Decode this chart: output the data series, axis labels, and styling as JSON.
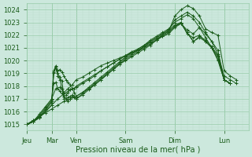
{
  "xlabel": "Pression niveau de la mer( hPa )",
  "bg_color": "#cce8dd",
  "grid_color_major": "#99ccaa",
  "grid_color_minor": "#bbddcc",
  "line_color": "#1a5c1a",
  "ylim": [
    1014.5,
    1024.5
  ],
  "day_labels": [
    "Jeu",
    "Mar",
    "Ven",
    "Sam",
    "Dim",
    "Lun"
  ],
  "day_positions": [
    0,
    24,
    48,
    96,
    144,
    192
  ],
  "yticks": [
    1015,
    1016,
    1017,
    1018,
    1019,
    1020,
    1021,
    1022,
    1023,
    1024
  ],
  "total_hours": 216,
  "lines": [
    [
      0,
      1015.0,
      6,
      1015.3,
      12,
      1015.6,
      18,
      1015.9,
      24,
      1016.2,
      30,
      1016.5,
      36,
      1016.8,
      42,
      1017.0,
      48,
      1017.2,
      54,
      1017.5,
      60,
      1017.8,
      66,
      1018.1,
      72,
      1018.5,
      78,
      1018.9,
      84,
      1019.3,
      90,
      1019.7,
      96,
      1020.0,
      102,
      1020.3,
      108,
      1020.6,
      114,
      1020.9,
      120,
      1021.2,
      126,
      1021.6,
      132,
      1022.0,
      138,
      1022.3,
      144,
      1023.5,
      150,
      1024.0,
      156,
      1024.3,
      162,
      1024.1,
      168,
      1023.5,
      174,
      1022.5,
      180,
      1022.2,
      186,
      1022.0,
      192,
      1019.2,
      198,
      1018.8,
      204,
      1018.5
    ],
    [
      0,
      1015.0,
      6,
      1015.3,
      12,
      1015.6,
      18,
      1016.0,
      24,
      1016.5,
      30,
      1017.0,
      36,
      1017.4,
      42,
      1017.7,
      48,
      1017.9,
      54,
      1018.2,
      60,
      1018.5,
      66,
      1018.8,
      72,
      1019.2,
      78,
      1019.5,
      84,
      1019.8,
      90,
      1020.1,
      96,
      1020.4,
      102,
      1020.7,
      108,
      1020.9,
      114,
      1021.2,
      120,
      1021.5,
      126,
      1021.8,
      132,
      1022.1,
      138,
      1022.4,
      144,
      1023.2,
      150,
      1023.5,
      156,
      1023.8,
      162,
      1023.5,
      168,
      1023.0,
      174,
      1022.2,
      180,
      1021.5,
      186,
      1020.5,
      192,
      1018.8,
      198,
      1018.5,
      204,
      1018.2
    ],
    [
      0,
      1015.0,
      6,
      1015.2,
      12,
      1015.5,
      18,
      1016.0,
      24,
      1016.5,
      26,
      1019.0,
      28,
      1019.5,
      30,
      1019.2,
      32,
      1019.3,
      34,
      1019.1,
      36,
      1018.8,
      38,
      1018.5,
      40,
      1018.3,
      42,
      1018.1,
      44,
      1017.8,
      46,
      1017.5,
      48,
      1017.2,
      54,
      1017.5,
      60,
      1017.9,
      66,
      1018.3,
      72,
      1018.7,
      78,
      1019.1,
      84,
      1019.5,
      90,
      1019.9,
      96,
      1020.3,
      102,
      1020.6,
      108,
      1020.9,
      114,
      1021.2,
      120,
      1021.6,
      126,
      1021.9,
      132,
      1022.2,
      138,
      1022.5,
      144,
      1023.0,
      150,
      1023.3,
      156,
      1023.6,
      162,
      1023.3,
      168,
      1022.6,
      174,
      1021.8,
      180,
      1021.0,
      186,
      1020.0,
      192,
      1018.5,
      198,
      1018.2
    ],
    [
      0,
      1015.0,
      6,
      1015.2,
      12,
      1015.5,
      18,
      1016.1,
      24,
      1016.7,
      26,
      1019.2,
      28,
      1019.6,
      30,
      1019.0,
      32,
      1018.7,
      34,
      1018.4,
      36,
      1017.2,
      38,
      1017.0,
      40,
      1016.8,
      42,
      1017.0,
      44,
      1017.2,
      46,
      1017.1,
      48,
      1017.0,
      54,
      1017.3,
      60,
      1017.7,
      66,
      1018.1,
      72,
      1018.5,
      78,
      1018.9,
      84,
      1019.3,
      90,
      1019.7,
      96,
      1020.1,
      102,
      1020.4,
      108,
      1020.7,
      114,
      1021.0,
      120,
      1021.3,
      126,
      1021.6,
      132,
      1021.9,
      138,
      1022.1,
      144,
      1022.6,
      150,
      1022.9,
      156,
      1022.4,
      162,
      1022.1,
      168,
      1022.6,
      174,
      1022.1,
      180,
      1021.5,
      186,
      1020.8,
      192,
      1018.5,
      198,
      1018.2
    ],
    [
      0,
      1015.0,
      6,
      1015.2,
      12,
      1015.6,
      18,
      1016.2,
      24,
      1016.8,
      26,
      1019.1,
      28,
      1019.4,
      30,
      1018.8,
      32,
      1018.5,
      34,
      1017.8,
      36,
      1017.0,
      38,
      1017.0,
      40,
      1017.1,
      42,
      1017.2,
      44,
      1017.3,
      46,
      1017.2,
      48,
      1017.0,
      54,
      1017.4,
      60,
      1017.8,
      66,
      1018.2,
      72,
      1018.6,
      78,
      1019.0,
      84,
      1019.4,
      90,
      1019.8,
      96,
      1020.2,
      102,
      1020.5,
      108,
      1020.8,
      114,
      1021.1,
      120,
      1021.5,
      126,
      1021.8,
      132,
      1022.1,
      138,
      1022.4,
      144,
      1022.8,
      150,
      1023.0,
      156,
      1022.1,
      162,
      1021.8,
      168,
      1022.0,
      174,
      1021.5,
      180,
      1021.0,
      186,
      1020.1,
      192,
      1018.5,
      198,
      1018.2
    ],
    [
      0,
      1015.0,
      6,
      1015.2,
      12,
      1015.7,
      18,
      1016.3,
      24,
      1016.9,
      26,
      1018.2,
      28,
      1018.3,
      30,
      1017.8,
      32,
      1017.6,
      34,
      1017.4,
      36,
      1017.2,
      38,
      1017.3,
      40,
      1017.5,
      42,
      1017.7,
      44,
      1017.8,
      46,
      1017.8,
      48,
      1018.0,
      54,
      1018.3,
      60,
      1018.6,
      66,
      1018.9,
      72,
      1019.2,
      78,
      1019.5,
      84,
      1019.8,
      90,
      1020.1,
      96,
      1020.4,
      102,
      1020.6,
      108,
      1020.8,
      114,
      1021.0,
      120,
      1021.3,
      126,
      1021.6,
      132,
      1021.9,
      138,
      1022.2,
      144,
      1022.7,
      150,
      1023.0,
      156,
      1022.2,
      162,
      1021.5,
      168,
      1021.8,
      174,
      1021.5,
      180,
      1021.0,
      186,
      1020.3,
      192,
      1018.5,
      198,
      1018.2
    ],
    [
      0,
      1015.0,
      6,
      1015.2,
      12,
      1015.8,
      18,
      1016.4,
      24,
      1017.0,
      28,
      1017.8,
      32,
      1017.9,
      36,
      1017.5,
      40,
      1017.8,
      44,
      1018.1,
      48,
      1018.5,
      54,
      1018.7,
      60,
      1019.0,
      66,
      1019.3,
      72,
      1019.6,
      78,
      1019.8,
      84,
      1020.0,
      90,
      1020.2,
      96,
      1020.4,
      102,
      1020.6,
      108,
      1020.8,
      114,
      1021.1,
      120,
      1021.4,
      126,
      1021.7,
      132,
      1022.0,
      138,
      1022.3,
      144,
      1022.7,
      150,
      1022.9,
      156,
      1022.2,
      162,
      1021.5,
      168,
      1021.9,
      174,
      1021.6,
      180,
      1021.1,
      186,
      1020.4,
      192,
      1018.5,
      198,
      1018.2
    ]
  ]
}
